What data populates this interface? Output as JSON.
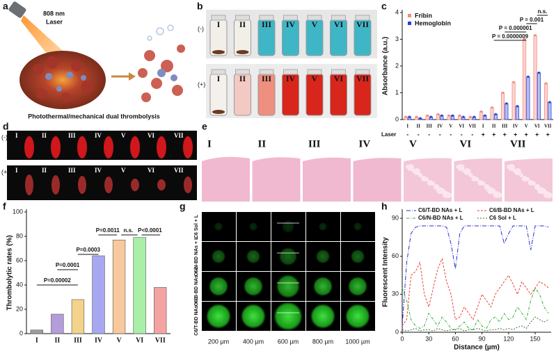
{
  "panels": {
    "a": {
      "label": "a",
      "laser_line1": "808 nm",
      "laser_line2": "Laser",
      "caption": "Photothermal/mechanical dual thrombolysis"
    },
    "b": {
      "label": "b",
      "minus": "(-)",
      "plus": "(+)",
      "top_labels": [
        "I",
        "II",
        "III",
        "IV",
        "V",
        "VI",
        "VII"
      ],
      "bottom_labels": [
        "I",
        "II",
        "III",
        "IV",
        "V",
        "VI",
        "VII"
      ]
    },
    "c": {
      "label": "c"
    },
    "d": {
      "label": "d",
      "minus": "(-)",
      "plus": "(+)",
      "top_labels": [
        "I",
        "II",
        "III",
        "IV",
        "V",
        "VI",
        "VII"
      ],
      "bottom_labels": [
        "I",
        "II",
        "III",
        "IV",
        "V",
        "VI",
        "VII"
      ]
    },
    "e": {
      "label": "e",
      "labels": [
        "I",
        "II",
        "III",
        "IV",
        "V",
        "VI",
        "VII"
      ]
    },
    "f": {
      "label": "f"
    },
    "g": {
      "label": "g",
      "rows": [
        "C6 Sol + L",
        "C6/N-BD NAs + L",
        "C6/B-BD NAs + L",
        "C6/T-BD NAs + L"
      ],
      "columns": [
        "200 µm",
        "400 µm",
        "600 µm",
        "800 µm",
        "1000 µm"
      ]
    },
    "h": {
      "label": "h"
    }
  },
  "chart_data": [
    {
      "type": "bar",
      "ylabel": "Absorbance (a.u.)",
      "categories": [
        "I",
        "II",
        "III",
        "IV",
        "V",
        "VI",
        "VII",
        "I",
        "II",
        "III",
        "IV",
        "V",
        "VI",
        "VII"
      ],
      "laser_title": "Laser",
      "laser": [
        "-",
        "-",
        "-",
        "-",
        "-",
        "-",
        "-",
        "+",
        "+",
        "+",
        "+",
        "+",
        "+",
        "+"
      ],
      "series": [
        {
          "name": "Fribin",
          "color": "#f28b82",
          "values": [
            0.1,
            0.1,
            0.15,
            0.2,
            0.15,
            0.15,
            0.1,
            0.3,
            0.45,
            1.0,
            1.4,
            3.0,
            3.15,
            1.35
          ]
        },
        {
          "name": "Hemoglobin",
          "color": "#2a3fd6",
          "values": [
            0.1,
            0.05,
            0.1,
            0.15,
            0.15,
            0.1,
            0.1,
            0.15,
            0.2,
            0.6,
            0.5,
            1.6,
            1.75,
            0.65
          ]
        }
      ],
      "ylim": [
        0,
        4
      ],
      "yticks": [
        0,
        1,
        2,
        3,
        4
      ],
      "annotations": [
        "P = 0.0000009",
        "P = 0.000001",
        "P = 0.001",
        "n.s."
      ]
    },
    {
      "type": "bar",
      "ylabel": "Thrombolytic rates (%)",
      "categories": [
        "I",
        "II",
        "III",
        "IV",
        "V",
        "VI",
        "VII"
      ],
      "values": [
        3,
        16,
        28,
        64,
        77,
        79,
        38
      ],
      "colors": [
        "#9e9e9e",
        "#b39ddb",
        "#f3d28b",
        "#a8a8f2",
        "#f7c99d",
        "#a8f0a8",
        "#f4a3a3"
      ],
      "ylim": [
        0,
        100
      ],
      "yticks": [
        0,
        20,
        40,
        60,
        80,
        100
      ],
      "annotations": [
        "P=0.00002",
        "P=0.0001",
        "P=0.0003",
        "P=0.0011",
        "n.s.",
        "P<0.0001"
      ]
    },
    {
      "type": "line",
      "ylabel": "Fluorescent Intensity",
      "xlabel": "Distance (µm)",
      "x": [
        0,
        5,
        10,
        15,
        20,
        25,
        30,
        35,
        40,
        45,
        50,
        55,
        60,
        65,
        70,
        75,
        80,
        85,
        90,
        95,
        100,
        105,
        110,
        115,
        120,
        125,
        130,
        135,
        140,
        145,
        150,
        155,
        160,
        165
      ],
      "series": [
        {
          "name": "C6/T-BD NAs + L",
          "color": "#2b2bd0",
          "values": [
            5,
            55,
            78,
            83,
            84,
            84,
            84,
            84,
            84,
            84,
            83,
            70,
            50,
            78,
            84,
            84,
            84,
            84,
            84,
            84,
            84,
            84,
            84,
            70,
            78,
            84,
            84,
            84,
            84,
            65,
            84,
            84,
            84,
            83
          ]
        },
        {
          "name": "C6/B-BD NAs + L",
          "color": "#e8402e",
          "values": [
            5,
            10,
            45,
            48,
            55,
            30,
            20,
            35,
            50,
            58,
            40,
            30,
            10,
            12,
            20,
            15,
            10,
            20,
            30,
            25,
            20,
            30,
            35,
            40,
            45,
            38,
            30,
            40,
            35,
            30,
            35,
            40,
            38,
            35
          ]
        },
        {
          "name": "C6/N-BD NAs + L",
          "color": "#2fae2f",
          "values": [
            35,
            25,
            10,
            5,
            3,
            5,
            15,
            10,
            5,
            12,
            8,
            3,
            2,
            5,
            8,
            3,
            2,
            10,
            5,
            3,
            10,
            12,
            8,
            15,
            10,
            12,
            20,
            15,
            10,
            25,
            35,
            30,
            20,
            15
          ]
        },
        {
          "name": "C6 Sol + L",
          "color": "#3d6b3d",
          "values": [
            2,
            1,
            2,
            3,
            1,
            2,
            2,
            1,
            3,
            2,
            1,
            2,
            2,
            3,
            1,
            2,
            2,
            3,
            2,
            1,
            2,
            2,
            3,
            2,
            3,
            2,
            4,
            5,
            3,
            8,
            12,
            10,
            8,
            10
          ]
        }
      ],
      "xlim": [
        0,
        168
      ],
      "xticks": [
        0,
        30,
        60,
        90,
        120,
        150
      ],
      "ylim": [
        0,
        95
      ],
      "yticks": [
        0,
        30,
        60,
        90
      ]
    }
  ]
}
